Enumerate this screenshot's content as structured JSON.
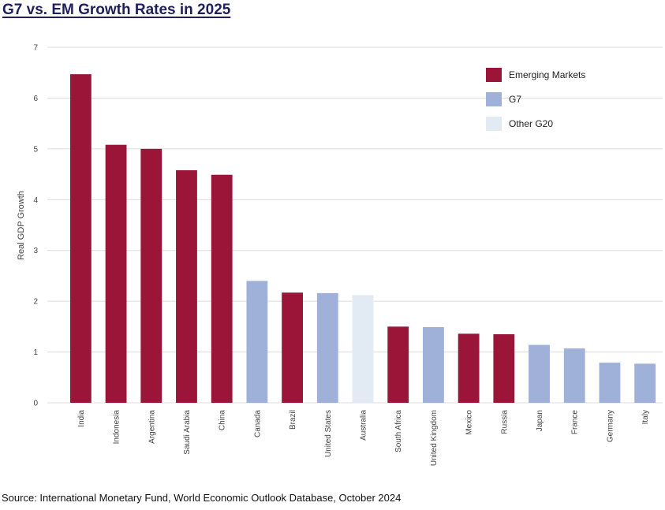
{
  "title": "G7 vs. EM Growth Rates in 2025",
  "source": "Source: International Monetary Fund, World Economic Outlook Database, October 2024",
  "colors": {
    "Emerging Markets": "#9b1538",
    "G7": "#9fb0d9",
    "Other G20": "#e2eaf3",
    "grid": "#dcdcdc",
    "text": "#444444"
  },
  "chart_data": {
    "type": "bar",
    "ylabel": "Real GDP Growth",
    "xlabel": "",
    "ylim": [
      0,
      7
    ],
    "yticks": [
      0,
      1,
      2,
      3,
      4,
      5,
      6,
      7
    ],
    "grid": true,
    "legend_position": "top-right",
    "legend": [
      "Emerging Markets",
      "G7",
      "Other G20"
    ],
    "categories": [
      "India",
      "Indonesia",
      "Argentina",
      "Saudi Arabia",
      "China",
      "Canada",
      "Brazil",
      "United States",
      "Australia",
      "South Africa",
      "United Kingdom",
      "Mexico",
      "Russia",
      "Japan",
      "France",
      "Germany",
      "Italy"
    ],
    "values": [
      6.47,
      5.08,
      5.0,
      4.58,
      4.49,
      2.4,
      2.17,
      2.16,
      2.12,
      1.5,
      1.49,
      1.36,
      1.35,
      1.14,
      1.07,
      0.79,
      0.77
    ],
    "groups": [
      "Emerging Markets",
      "Emerging Markets",
      "Emerging Markets",
      "Emerging Markets",
      "Emerging Markets",
      "G7",
      "Emerging Markets",
      "G7",
      "Other G20",
      "Emerging Markets",
      "G7",
      "Emerging Markets",
      "Emerging Markets",
      "G7",
      "G7",
      "G7",
      "G7"
    ]
  }
}
